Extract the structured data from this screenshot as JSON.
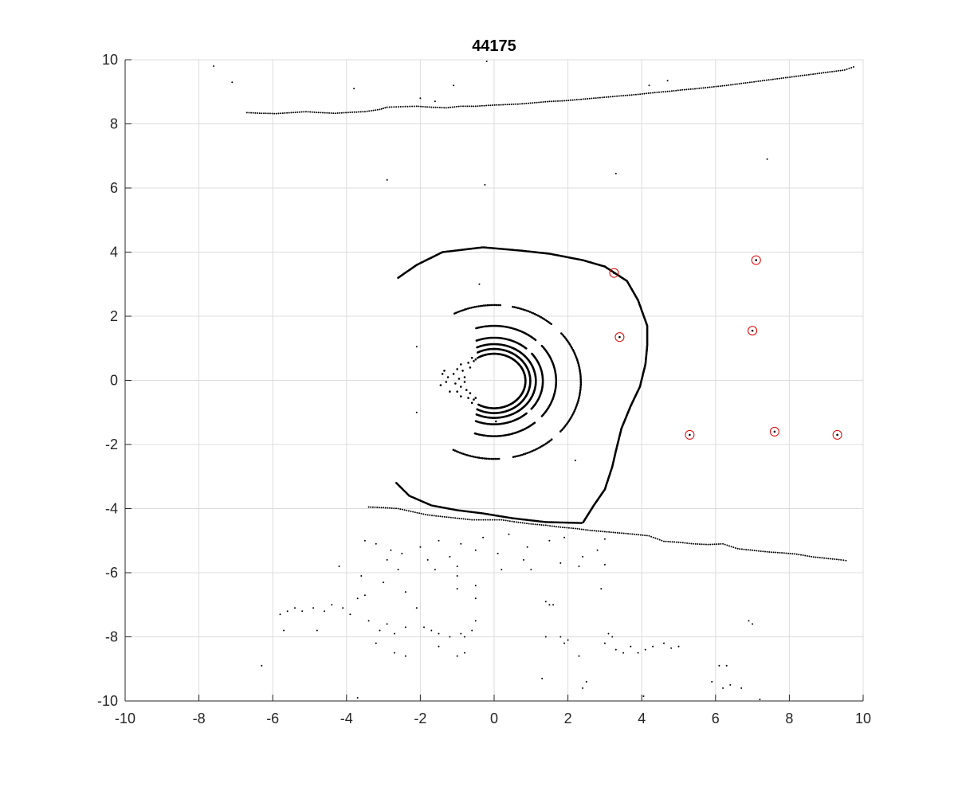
{
  "chart_data": {
    "type": "scatter",
    "title": "44175",
    "xlabel": "",
    "ylabel": "",
    "xlim": [
      -10,
      10
    ],
    "ylim": [
      -10,
      10
    ],
    "xticks": [
      -10,
      -8,
      -6,
      -4,
      -2,
      0,
      2,
      4,
      6,
      8,
      10
    ],
    "yticks": [
      -10,
      -8,
      -6,
      -4,
      -2,
      0,
      2,
      4,
      6,
      8,
      10
    ],
    "xtick_labels": [
      "-10",
      "-8",
      "-6",
      "-4",
      "-2",
      "0",
      "2",
      "4",
      "6",
      "8",
      "10"
    ],
    "ytick_labels": [
      "-10",
      "-8",
      "-6",
      "-4",
      "-2",
      "0",
      "2",
      "4",
      "6",
      "8",
      "10"
    ],
    "grid": true,
    "colors": {
      "points": "#000000",
      "markers": "#e00000",
      "grid": "#dcdcdc",
      "axis": "#262626"
    },
    "rings": [
      {
        "cx": 0,
        "cy": -0.02,
        "rx": 0.85,
        "ry": 0.85,
        "start_deg": -120,
        "end_deg": 120
      },
      {
        "cx": 0,
        "cy": -0.02,
        "rx": 0.98,
        "ry": 1.0,
        "start_deg": -118,
        "end_deg": 118
      },
      {
        "cx": 0,
        "cy": -0.02,
        "rx": 1.13,
        "ry": 1.15,
        "start_deg": -115,
        "end_deg": 115
      },
      {
        "cx": 0,
        "cy": -0.02,
        "rx": 1.32,
        "ry": 1.35,
        "start_deg": -112,
        "end_deg": 112
      },
      {
        "cx": 0,
        "cy": -0.02,
        "rx": 1.68,
        "ry": 1.72,
        "start_deg": -108,
        "end_deg": 108
      },
      {
        "cx": 0,
        "cy": -0.05,
        "rx": 2.35,
        "ry": 2.4,
        "start_deg": -118,
        "end_deg": 118
      }
    ],
    "outer_contour": [
      [
        -2.6,
        3.2
      ],
      [
        -2.1,
        3.6
      ],
      [
        -1.4,
        4.0
      ],
      [
        -0.3,
        4.15
      ],
      [
        0.7,
        4.05
      ],
      [
        1.5,
        3.95
      ],
      [
        2.4,
        3.75
      ],
      [
        3.0,
        3.55
      ],
      [
        3.6,
        3.1
      ],
      [
        3.9,
        2.5
      ],
      [
        4.15,
        1.7
      ],
      [
        4.15,
        1.1
      ],
      [
        4.1,
        0.5
      ],
      [
        3.95,
        -0.2
      ],
      [
        3.7,
        -0.8
      ],
      [
        3.45,
        -1.5
      ],
      [
        3.3,
        -2.2
      ],
      [
        3.2,
        -2.7
      ],
      [
        3.0,
        -3.4
      ],
      [
        2.7,
        -3.9
      ],
      [
        2.4,
        -4.45
      ]
    ],
    "inner_contour": [
      [
        -2.65,
        -3.2
      ],
      [
        -2.3,
        -3.6
      ],
      [
        -1.7,
        -3.9
      ],
      [
        -1.0,
        -4.05
      ],
      [
        -0.3,
        -4.15
      ],
      [
        0.5,
        -4.3
      ],
      [
        1.4,
        -4.42
      ],
      [
        2.4,
        -4.45
      ]
    ],
    "left_cluster": [
      [
        -1.1,
        0.2
      ],
      [
        -1.05,
        -0.1
      ],
      [
        -0.95,
        0.05
      ],
      [
        -0.9,
        -0.2
      ],
      [
        -0.85,
        0.3
      ],
      [
        -0.75,
        -0.3
      ],
      [
        -0.7,
        0.55
      ],
      [
        -0.7,
        -0.55
      ],
      [
        -0.65,
        0.4
      ],
      [
        -0.65,
        -0.4
      ],
      [
        -0.6,
        0.7
      ],
      [
        -0.6,
        -0.7
      ],
      [
        -1.25,
        0.1
      ],
      [
        -1.3,
        -0.05
      ],
      [
        -1.35,
        0.3
      ],
      [
        -1.2,
        -0.35
      ],
      [
        -0.8,
        0.1
      ],
      [
        -0.8,
        -0.05
      ],
      [
        -0.55,
        0.6
      ],
      [
        -0.55,
        -0.6
      ],
      [
        -1.4,
        0.2
      ],
      [
        -1.45,
        -0.15
      ],
      [
        -1.0,
        0.35
      ],
      [
        -1.0,
        -0.35
      ],
      [
        -0.9,
        0.5
      ],
      [
        -0.9,
        -0.5
      ],
      [
        -0.5,
        0.65
      ],
      [
        -0.5,
        -0.55
      ],
      [
        -0.45,
        0.7
      ],
      [
        0.05,
        -1.28
      ]
    ],
    "wall_top": [
      [
        -6.7,
        8.35
      ],
      [
        -6.3,
        8.33
      ],
      [
        -5.9,
        8.32
      ],
      [
        -5.5,
        8.35
      ],
      [
        -5.1,
        8.38
      ],
      [
        -4.7,
        8.35
      ],
      [
        -4.3,
        8.33
      ],
      [
        -3.9,
        8.36
      ],
      [
        -3.5,
        8.38
      ],
      [
        -3.1,
        8.45
      ],
      [
        -2.9,
        8.52
      ],
      [
        -2.1,
        8.55
      ],
      [
        -1.7,
        8.52
      ],
      [
        -1.3,
        8.5
      ],
      [
        -0.9,
        8.55
      ],
      [
        -0.5,
        8.55
      ],
      [
        -0.1,
        8.58
      ],
      [
        0.3,
        8.6
      ],
      [
        0.7,
        8.62
      ],
      [
        1.1,
        8.66
      ],
      [
        1.5,
        8.7
      ],
      [
        1.9,
        8.72
      ],
      [
        2.3,
        8.76
      ],
      [
        2.7,
        8.8
      ],
      [
        3.1,
        8.84
      ],
      [
        3.5,
        8.88
      ],
      [
        3.9,
        8.92
      ],
      [
        4.3,
        8.97
      ],
      [
        4.7,
        9.01
      ],
      [
        5.1,
        9.06
      ],
      [
        5.5,
        9.1
      ],
      [
        5.9,
        9.15
      ],
      [
        6.3,
        9.2
      ],
      [
        6.7,
        9.26
      ],
      [
        7.1,
        9.32
      ],
      [
        7.5,
        9.38
      ],
      [
        7.9,
        9.44
      ],
      [
        8.3,
        9.5
      ],
      [
        8.7,
        9.56
      ],
      [
        9.1,
        9.62
      ],
      [
        9.5,
        9.68
      ],
      [
        9.8,
        9.8
      ]
    ],
    "wall_bottom": [
      [
        -3.4,
        -3.95
      ],
      [
        -3.0,
        -3.97
      ],
      [
        -2.6,
        -4.0
      ],
      [
        -2.2,
        -4.1
      ],
      [
        -1.8,
        -4.2
      ],
      [
        -1.4,
        -4.25
      ],
      [
        -1.0,
        -4.3
      ],
      [
        -0.6,
        -4.35
      ],
      [
        0.2,
        -4.35
      ],
      [
        0.6,
        -4.42
      ],
      [
        1.0,
        -4.48
      ],
      [
        1.4,
        -4.52
      ],
      [
        1.8,
        -4.58
      ],
      [
        2.2,
        -4.62
      ],
      [
        2.6,
        -4.68
      ],
      [
        3.0,
        -4.72
      ],
      [
        3.4,
        -4.76
      ],
      [
        3.8,
        -4.8
      ],
      [
        4.2,
        -4.85
      ],
      [
        4.6,
        -5.02
      ],
      [
        5.0,
        -5.05
      ],
      [
        5.4,
        -5.1
      ],
      [
        5.8,
        -5.12
      ],
      [
        6.2,
        -5.1
      ],
      [
        6.6,
        -5.25
      ],
      [
        7.0,
        -5.3
      ],
      [
        7.4,
        -5.35
      ],
      [
        7.8,
        -5.38
      ],
      [
        8.2,
        -5.42
      ],
      [
        8.6,
        -5.5
      ],
      [
        9.0,
        -5.55
      ],
      [
        9.4,
        -5.6
      ],
      [
        9.6,
        -5.63
      ]
    ],
    "scatter_points": [
      [
        -7.6,
        9.8
      ],
      [
        -7.1,
        9.3
      ],
      [
        -3.8,
        9.1
      ],
      [
        -2.0,
        8.8
      ],
      [
        -1.6,
        8.7
      ],
      [
        -1.1,
        9.2
      ],
      [
        -0.2,
        9.95
      ],
      [
        4.2,
        9.2
      ],
      [
        4.7,
        9.35
      ],
      [
        -2.9,
        6.25
      ],
      [
        -0.25,
        6.1
      ],
      [
        3.3,
        6.45
      ],
      [
        7.4,
        6.9
      ],
      [
        -0.4,
        3.0
      ],
      [
        -2.1,
        1.05
      ],
      [
        -2.1,
        -1.0
      ],
      [
        2.2,
        -2.5
      ],
      [
        -3.5,
        -5.0
      ],
      [
        -3.2,
        -5.1
      ],
      [
        -2.8,
        -5.3
      ],
      [
        -2.5,
        -5.4
      ],
      [
        -2.0,
        -5.2
      ],
      [
        -1.8,
        -5.6
      ],
      [
        -1.5,
        -5.0
      ],
      [
        -1.2,
        -5.5
      ],
      [
        -0.9,
        -5.1
      ],
      [
        -0.5,
        -5.3
      ],
      [
        -0.3,
        -4.9
      ],
      [
        0.1,
        -5.4
      ],
      [
        0.4,
        -4.8
      ],
      [
        0.9,
        -5.2
      ],
      [
        1.5,
        -5.0
      ],
      [
        1.9,
        -4.9
      ],
      [
        2.4,
        -5.5
      ],
      [
        2.8,
        -5.3
      ],
      [
        3.0,
        -4.95
      ],
      [
        -2.9,
        -5.6
      ],
      [
        -2.6,
        -5.9
      ],
      [
        -1.6,
        -5.9
      ],
      [
        -1.0,
        -5.8
      ],
      [
        0.2,
        -5.9
      ],
      [
        0.8,
        -5.6
      ],
      [
        1.0,
        -5.9
      ],
      [
        1.8,
        -5.7
      ],
      [
        2.3,
        -5.8
      ],
      [
        3.0,
        -5.75
      ],
      [
        -4.2,
        -5.8
      ],
      [
        -3.6,
        -6.1
      ],
      [
        -3.0,
        -6.3
      ],
      [
        -2.4,
        -6.6
      ],
      [
        -1.0,
        -6.1
      ],
      [
        -1.0,
        -6.5
      ],
      [
        -0.5,
        -6.4
      ],
      [
        2.9,
        -6.5
      ],
      [
        -5.8,
        -7.3
      ],
      [
        -5.6,
        -7.2
      ],
      [
        -5.4,
        -7.1
      ],
      [
        -5.2,
        -7.2
      ],
      [
        -4.9,
        -7.1
      ],
      [
        -4.6,
        -7.2
      ],
      [
        -4.4,
        -7.0
      ],
      [
        -4.1,
        -7.1
      ],
      [
        -3.9,
        -7.3
      ],
      [
        -3.7,
        -6.8
      ],
      [
        -3.5,
        -6.7
      ],
      [
        -3.4,
        -7.5
      ],
      [
        -3.1,
        -7.8
      ],
      [
        -2.9,
        -7.6
      ],
      [
        -2.7,
        -7.9
      ],
      [
        -2.4,
        -7.7
      ],
      [
        -2.1,
        -7.1
      ],
      [
        -1.9,
        -7.7
      ],
      [
        -1.7,
        -7.8
      ],
      [
        -1.5,
        -7.9
      ],
      [
        -1.2,
        -8.0
      ],
      [
        -0.9,
        -7.9
      ],
      [
        -0.6,
        -7.8
      ],
      [
        -0.5,
        -7.5
      ],
      [
        -0.5,
        -6.8
      ],
      [
        -0.8,
        -8.0
      ],
      [
        1.4,
        -6.9
      ],
      [
        1.5,
        -7.0
      ],
      [
        1.6,
        -7.0
      ],
      [
        -5.7,
        -7.8
      ],
      [
        -4.8,
        -7.8
      ],
      [
        -3.2,
        -8.2
      ],
      [
        -2.7,
        -8.5
      ],
      [
        -2.4,
        -8.6
      ],
      [
        -1.5,
        -8.3
      ],
      [
        -1.0,
        -8.6
      ],
      [
        -0.8,
        -8.5
      ],
      [
        1.4,
        -8.0
      ],
      [
        1.8,
        -8.0
      ],
      [
        1.9,
        -8.2
      ],
      [
        2.0,
        -8.1
      ],
      [
        2.3,
        -8.6
      ],
      [
        3.0,
        -8.2
      ],
      [
        3.1,
        -7.9
      ],
      [
        3.2,
        -8.0
      ],
      [
        3.3,
        -8.4
      ],
      [
        3.5,
        -8.5
      ],
      [
        3.7,
        -8.3
      ],
      [
        3.9,
        -8.5
      ],
      [
        4.1,
        -8.4
      ],
      [
        4.3,
        -8.3
      ],
      [
        4.6,
        -8.2
      ],
      [
        4.8,
        -8.35
      ],
      [
        5.0,
        -8.3
      ],
      [
        6.9,
        -7.5
      ],
      [
        7.0,
        -7.6
      ],
      [
        6.1,
        -8.9
      ],
      [
        6.3,
        -8.9
      ],
      [
        -6.3,
        -8.9
      ],
      [
        2.5,
        -9.4
      ],
      [
        2.4,
        -9.6
      ],
      [
        1.3,
        -9.3
      ],
      [
        5.9,
        -9.4
      ],
      [
        6.2,
        -9.6
      ],
      [
        6.4,
        -9.5
      ],
      [
        6.7,
        -9.6
      ],
      [
        4.05,
        -9.85
      ],
      [
        7.2,
        -9.95
      ],
      [
        -3.7,
        -9.9
      ]
    ],
    "marker_circles": [
      [
        3.25,
        3.35
      ],
      [
        7.1,
        3.75
      ],
      [
        3.4,
        1.35
      ],
      [
        7.0,
        1.55
      ],
      [
        5.3,
        -1.7
      ],
      [
        7.6,
        -1.6
      ],
      [
        9.3,
        -1.7
      ]
    ]
  }
}
